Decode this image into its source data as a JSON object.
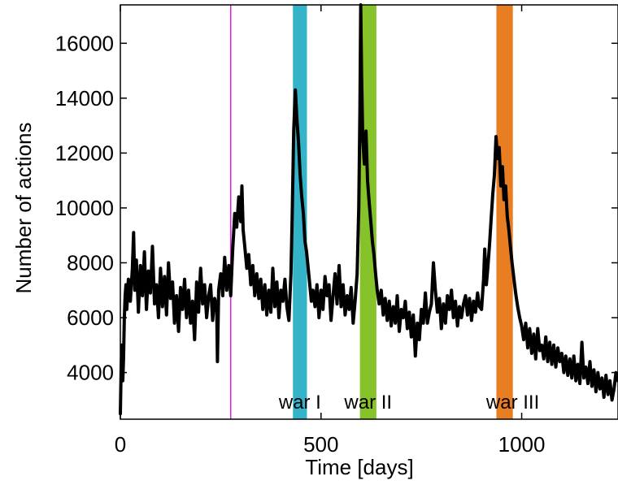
{
  "chart_data": {
    "type": "line",
    "title": "",
    "xlabel": "Time [days]",
    "ylabel": "Number of actions",
    "xlim": [
      0,
      1240
    ],
    "ylim": [
      2300,
      17400
    ],
    "xticks": [
      0,
      500,
      1000
    ],
    "yticks": [
      4000,
      6000,
      8000,
      10000,
      12000,
      14000,
      16000
    ],
    "grid": false,
    "legend": "none",
    "vertical_marker": {
      "x": 275,
      "color": "#e020e0"
    },
    "bands": [
      {
        "label": "war I",
        "x0": 430,
        "x1": 465,
        "color": "#35b3c8"
      },
      {
        "label": "war II",
        "x0": 597,
        "x1": 638,
        "color": "#86c22a"
      },
      {
        "label": "war III",
        "x0": 937,
        "x1": 978,
        "color": "#e87d22"
      }
    ],
    "series": [
      {
        "color": "#000000",
        "points": [
          [
            0,
            2500
          ],
          [
            2,
            4200
          ],
          [
            4,
            5000
          ],
          [
            6,
            3700
          ],
          [
            8,
            4500
          ],
          [
            10,
            6000
          ],
          [
            12,
            6800
          ],
          [
            14,
            7200
          ],
          [
            16,
            6300
          ],
          [
            20,
            7400
          ],
          [
            25,
            6600
          ],
          [
            30,
            7800
          ],
          [
            33,
            9100
          ],
          [
            36,
            7000
          ],
          [
            40,
            8100
          ],
          [
            45,
            6200
          ],
          [
            50,
            7900
          ],
          [
            55,
            6800
          ],
          [
            60,
            8400
          ],
          [
            65,
            6300
          ],
          [
            70,
            7700
          ],
          [
            75,
            6900
          ],
          [
            80,
            8600
          ],
          [
            85,
            6500
          ],
          [
            90,
            7200
          ],
          [
            95,
            6000
          ],
          [
            100,
            7800
          ],
          [
            105,
            6400
          ],
          [
            110,
            7500
          ],
          [
            115,
            6100
          ],
          [
            120,
            8000
          ],
          [
            125,
            6700
          ],
          [
            130,
            7300
          ],
          [
            135,
            5800
          ],
          [
            140,
            6800
          ],
          [
            145,
            5500
          ],
          [
            150,
            7100
          ],
          [
            155,
            6300
          ],
          [
            160,
            7400
          ],
          [
            165,
            6000
          ],
          [
            170,
            7000
          ],
          [
            175,
            5800
          ],
          [
            180,
            6600
          ],
          [
            185,
            5200
          ],
          [
            190,
            7300
          ],
          [
            195,
            6200
          ],
          [
            200,
            7800
          ],
          [
            205,
            6500
          ],
          [
            210,
            7200
          ],
          [
            215,
            6000
          ],
          [
            220,
            6800
          ],
          [
            225,
            7200
          ],
          [
            230,
            5900
          ],
          [
            235,
            6700
          ],
          [
            240,
            6400
          ],
          [
            242,
            4400
          ],
          [
            245,
            7000
          ],
          [
            250,
            7600
          ],
          [
            255,
            6800
          ],
          [
            260,
            8200
          ],
          [
            265,
            7000
          ],
          [
            270,
            7900
          ],
          [
            275,
            6800
          ],
          [
            280,
            8500
          ],
          [
            285,
            9800
          ],
          [
            290,
            9300
          ],
          [
            295,
            10400
          ],
          [
            300,
            9500
          ],
          [
            303,
            10800
          ],
          [
            306,
            9200
          ],
          [
            310,
            8600
          ],
          [
            315,
            7800
          ],
          [
            320,
            8300
          ],
          [
            325,
            7200
          ],
          [
            330,
            7900
          ],
          [
            335,
            6800
          ],
          [
            340,
            7600
          ],
          [
            345,
            6700
          ],
          [
            350,
            7400
          ],
          [
            355,
            6300
          ],
          [
            360,
            7200
          ],
          [
            365,
            6100
          ],
          [
            370,
            7000
          ],
          [
            375,
            6200
          ],
          [
            380,
            7800
          ],
          [
            385,
            6400
          ],
          [
            390,
            7300
          ],
          [
            395,
            6000
          ],
          [
            400,
            7000
          ],
          [
            405,
            6600
          ],
          [
            410,
            7400
          ],
          [
            415,
            6400
          ],
          [
            420,
            5900
          ],
          [
            425,
            7600
          ],
          [
            428,
            9500
          ],
          [
            432,
            12800
          ],
          [
            436,
            14300
          ],
          [
            440,
            13200
          ],
          [
            444,
            12400
          ],
          [
            448,
            11200
          ],
          [
            452,
            10400
          ],
          [
            456,
            9800
          ],
          [
            460,
            8800
          ],
          [
            464,
            8400
          ],
          [
            468,
            7800
          ],
          [
            472,
            7200
          ],
          [
            476,
            6600
          ],
          [
            480,
            7000
          ],
          [
            485,
            6400
          ],
          [
            490,
            7200
          ],
          [
            495,
            6000
          ],
          [
            500,
            7000
          ],
          [
            505,
            6300
          ],
          [
            510,
            7500
          ],
          [
            515,
            6800
          ],
          [
            520,
            7200
          ],
          [
            525,
            5900
          ],
          [
            530,
            6800
          ],
          [
            535,
            7600
          ],
          [
            540,
            6500
          ],
          [
            545,
            7900
          ],
          [
            550,
            6400
          ],
          [
            555,
            7200
          ],
          [
            560,
            6100
          ],
          [
            565,
            6800
          ],
          [
            570,
            6300
          ],
          [
            575,
            7100
          ],
          [
            580,
            5800
          ],
          [
            585,
            6600
          ],
          [
            590,
            7600
          ],
          [
            594,
            10000
          ],
          [
            597,
            13500
          ],
          [
            599,
            17400
          ],
          [
            601,
            15000
          ],
          [
            604,
            12500
          ],
          [
            608,
            11600
          ],
          [
            612,
            12800
          ],
          [
            616,
            11000
          ],
          [
            620,
            10200
          ],
          [
            624,
            9500
          ],
          [
            628,
            8800
          ],
          [
            632,
            8300
          ],
          [
            636,
            7600
          ],
          [
            640,
            7000
          ],
          [
            645,
            6500
          ],
          [
            650,
            7000
          ],
          [
            655,
            6100
          ],
          [
            660,
            6700
          ],
          [
            665,
            5900
          ],
          [
            670,
            6600
          ],
          [
            675,
            5700
          ],
          [
            680,
            6400
          ],
          [
            685,
            5800
          ],
          [
            690,
            6800
          ],
          [
            695,
            5500
          ],
          [
            700,
            6300
          ],
          [
            705,
            6000
          ],
          [
            710,
            6600
          ],
          [
            715,
            5600
          ],
          [
            720,
            6200
          ],
          [
            725,
            5300
          ],
          [
            730,
            6100
          ],
          [
            735,
            4600
          ],
          [
            740,
            5800
          ],
          [
            745,
            5200
          ],
          [
            750,
            6300
          ],
          [
            755,
            5800
          ],
          [
            760,
            6900
          ],
          [
            765,
            5800
          ],
          [
            770,
            6200
          ],
          [
            775,
            6500
          ],
          [
            780,
            8000
          ],
          [
            785,
            7000
          ],
          [
            790,
            6200
          ],
          [
            795,
            6700
          ],
          [
            800,
            5600
          ],
          [
            805,
            6500
          ],
          [
            810,
            5800
          ],
          [
            815,
            6800
          ],
          [
            820,
            6300
          ],
          [
            825,
            7000
          ],
          [
            830,
            6000
          ],
          [
            835,
            6600
          ],
          [
            840,
            5700
          ],
          [
            845,
            6400
          ],
          [
            850,
            6000
          ],
          [
            855,
            6500
          ],
          [
            860,
            6800
          ],
          [
            865,
            6100
          ],
          [
            870,
            6700
          ],
          [
            875,
            5900
          ],
          [
            880,
            6600
          ],
          [
            885,
            6200
          ],
          [
            890,
            6900
          ],
          [
            895,
            6400
          ],
          [
            900,
            6300
          ],
          [
            905,
            7400
          ],
          [
            908,
            8500
          ],
          [
            912,
            7200
          ],
          [
            916,
            7900
          ],
          [
            920,
            8700
          ],
          [
            924,
            9600
          ],
          [
            928,
            10500
          ],
          [
            932,
            11200
          ],
          [
            936,
            12600
          ],
          [
            940,
            11800
          ],
          [
            944,
            12200
          ],
          [
            948,
            10800
          ],
          [
            952,
            11500
          ],
          [
            956,
            10300
          ],
          [
            960,
            10800
          ],
          [
            964,
            9700
          ],
          [
            968,
            9200
          ],
          [
            972,
            8600
          ],
          [
            976,
            8000
          ],
          [
            980,
            7500
          ],
          [
            985,
            6900
          ],
          [
            990,
            6400
          ],
          [
            995,
            6000
          ],
          [
            1000,
            5700
          ],
          [
            1005,
            5200
          ],
          [
            1010,
            5800
          ],
          [
            1015,
            4900
          ],
          [
            1020,
            5600
          ],
          [
            1025,
            4700
          ],
          [
            1030,
            5400
          ],
          [
            1035,
            4500
          ],
          [
            1040,
            5600
          ],
          [
            1045,
            4800
          ],
          [
            1050,
            5000
          ],
          [
            1055,
            4500
          ],
          [
            1060,
            5300
          ],
          [
            1065,
            4400
          ],
          [
            1070,
            5100
          ],
          [
            1075,
            4300
          ],
          [
            1080,
            5000
          ],
          [
            1085,
            4200
          ],
          [
            1090,
            4900
          ],
          [
            1095,
            4400
          ],
          [
            1100,
            4700
          ],
          [
            1105,
            4000
          ],
          [
            1110,
            4600
          ],
          [
            1115,
            3900
          ],
          [
            1120,
            4500
          ],
          [
            1125,
            3800
          ],
          [
            1130,
            4600
          ],
          [
            1135,
            3700
          ],
          [
            1140,
            4300
          ],
          [
            1145,
            3600
          ],
          [
            1150,
            5100
          ],
          [
            1155,
            3800
          ],
          [
            1160,
            4200
          ],
          [
            1165,
            3600
          ],
          [
            1170,
            4400
          ],
          [
            1175,
            3500
          ],
          [
            1180,
            4100
          ],
          [
            1185,
            3300
          ],
          [
            1190,
            4000
          ],
          [
            1195,
            3400
          ],
          [
            1200,
            3800
          ],
          [
            1205,
            3100
          ],
          [
            1210,
            3900
          ],
          [
            1215,
            3200
          ],
          [
            1220,
            3700
          ],
          [
            1225,
            3000
          ],
          [
            1230,
            3400
          ],
          [
            1235,
            4000
          ],
          [
            1240,
            3700
          ]
        ]
      }
    ]
  }
}
